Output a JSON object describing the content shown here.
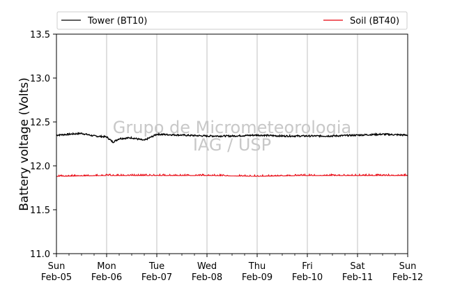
{
  "chart_data": {
    "type": "line",
    "ylabel": "Battery voltage (Volts)",
    "xlabel": "",
    "ylim": [
      11.0,
      13.5
    ],
    "yticks": [
      "11.0",
      "11.5",
      "12.0",
      "12.5",
      "13.0",
      "13.5"
    ],
    "xticks": [
      {
        "day": "Sun",
        "date": "Feb-05"
      },
      {
        "day": "Mon",
        "date": "Feb-06"
      },
      {
        "day": "Tue",
        "date": "Feb-07"
      },
      {
        "day": "Wed",
        "date": "Feb-08"
      },
      {
        "day": "Thu",
        "date": "Feb-09"
      },
      {
        "day": "Fri",
        "date": "Feb-10"
      },
      {
        "day": "Sat",
        "date": "Feb-11"
      },
      {
        "day": "Sun",
        "date": "Feb-12"
      }
    ],
    "grid": "vertical",
    "legend_position": "top",
    "watermark": [
      "Grupo de Micrometeorologia",
      "IAG / USP"
    ],
    "series": [
      {
        "name": "Tower (BT10)",
        "color": "#000000",
        "x": [
          "Feb-05 00:00",
          "Feb-05 12:00",
          "Feb-05 18:00",
          "Feb-06 00:00",
          "Feb-06 03:00",
          "Feb-06 06:00",
          "Feb-06 12:00",
          "Feb-06 18:00",
          "Feb-07 00:00",
          "Feb-07 12:00",
          "Feb-08 00:00",
          "Feb-08 12:00",
          "Feb-09 00:00",
          "Feb-09 12:00",
          "Feb-10 00:00",
          "Feb-10 12:00",
          "Feb-11 00:00",
          "Feb-11 12:00",
          "Feb-12 00:00"
        ],
        "values": [
          12.35,
          12.37,
          12.34,
          12.33,
          12.27,
          12.31,
          12.32,
          12.29,
          12.36,
          12.35,
          12.34,
          12.34,
          12.35,
          12.34,
          12.34,
          12.34,
          12.35,
          12.36,
          12.35
        ]
      },
      {
        "name": "Soil (BT40)",
        "color": "#e8000b",
        "x": [
          "Feb-05 00:00",
          "Feb-06 00:00",
          "Feb-07 00:00",
          "Feb-08 00:00",
          "Feb-09 00:00",
          "Feb-10 00:00",
          "Feb-11 00:00",
          "Feb-12 00:00"
        ],
        "values": [
          11.88,
          11.89,
          11.89,
          11.89,
          11.88,
          11.89,
          11.89,
          11.89
        ]
      }
    ]
  }
}
